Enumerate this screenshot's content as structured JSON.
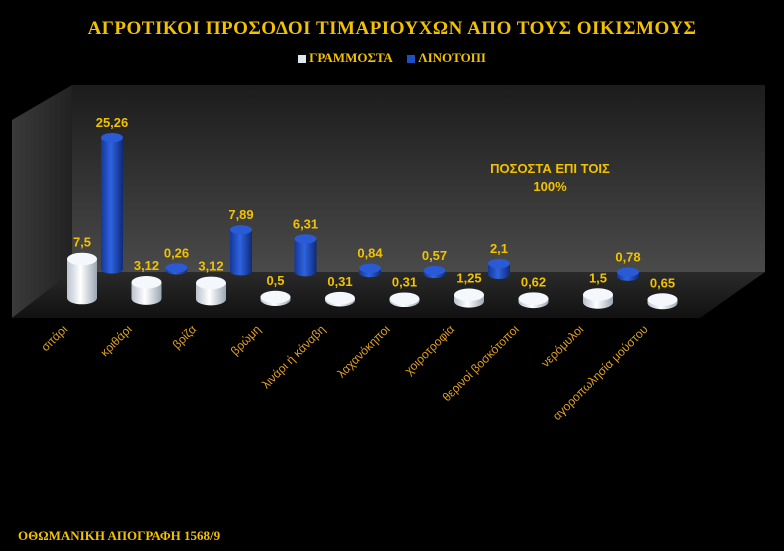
{
  "chart_data": {
    "type": "bar",
    "title": "ΑΓΡΟΤΙΚΟΙ ΠΡΟΣΟΔΟΙ ΤΙΜΑΡΙΟΥΧΩΝ ΑΠΟ ΤΟΥΣ ΟΙΚΙΣΜΟΥΣ",
    "categories": [
      "σιτάρι",
      "κριθάρι",
      "βρίζα",
      "βρώμη",
      "λινάρι ή κάναβη",
      "λαχανόκηποι",
      "χοιροτροφία",
      "θερινοί βοσκότοποι",
      "νερόμυλοι",
      "αγοροπωλησία μούστου"
    ],
    "series": [
      {
        "name": "ΓΡΑΜΜΟΣΤΑ",
        "color": "#dfe6ef",
        "values": [
          7.5,
          3.12,
          3.12,
          0.5,
          0.31,
          0.31,
          1.25,
          0.62,
          1.5,
          0.65
        ]
      },
      {
        "name": "ΛΙΝΟΤΟΠΙ",
        "color": "#1f4fc4",
        "values": [
          25.26,
          0.26,
          7.89,
          6.31,
          0.84,
          0.57,
          2.1,
          null,
          0.78,
          null
        ]
      }
    ],
    "labels": [
      [
        "7,5",
        "3,12",
        "3,12",
        "0,5",
        "0,31",
        "0,31",
        "1,25",
        "0,62",
        "1,5",
        "0,65"
      ],
      [
        "25,26",
        "0,26",
        "7,89",
        "6,31",
        "0,84",
        "0,57",
        "2,1",
        "",
        "0,78",
        ""
      ]
    ],
    "annotation_line1": "ΠΟΣΟΣΤΑ ΕΠΙ ΤΟΙΣ",
    "annotation_line2": "100%",
    "footer": "ΟΘΩΜΑΝΙΚΗ ΑΠΟΓΡΑΦΗ 1568/9",
    "xlabel": "",
    "ylabel": "",
    "grid": false,
    "legend_position": "top-center"
  }
}
